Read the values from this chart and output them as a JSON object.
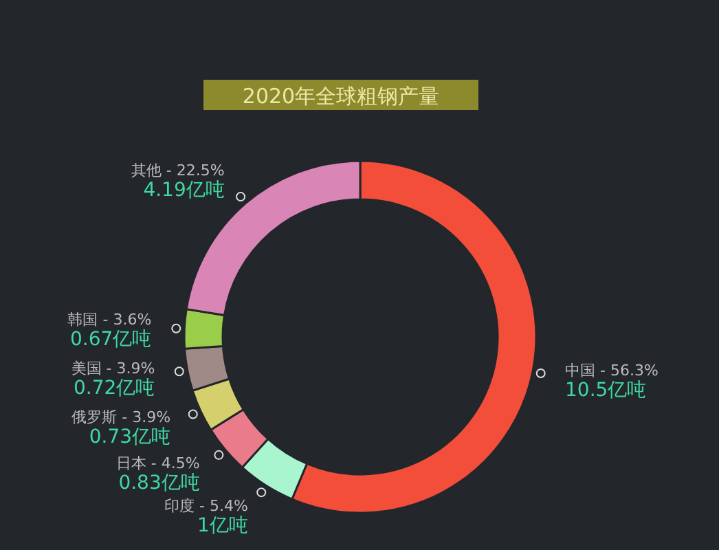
{
  "chart_data": {
    "type": "donut",
    "title": "2020年全球粗钢产量",
    "categories": [
      "中国 - 56.3%",
      "印度 - 5.4%",
      "日本 - 4.5%",
      "俄罗斯 - 3.9%",
      "美国 - 3.9%",
      "韩国 - 3.6%",
      "其他 - 22.5%"
    ],
    "values": [
      10.5,
      1,
      0.83,
      0.73,
      0.72,
      0.67,
      4.19
    ],
    "colors": [
      "#f24e3a",
      "#a8f5d0",
      "#ea7b8a",
      "#d6cf6e",
      "#a08a88",
      "#9acd4a",
      "#d985b5"
    ],
    "value_labels": [
      "10.5亿吨",
      "1亿吨",
      "0.83亿吨",
      "0.73亿吨",
      "0.72亿吨",
      "0.67亿吨",
      "4.19亿吨"
    ]
  }
}
